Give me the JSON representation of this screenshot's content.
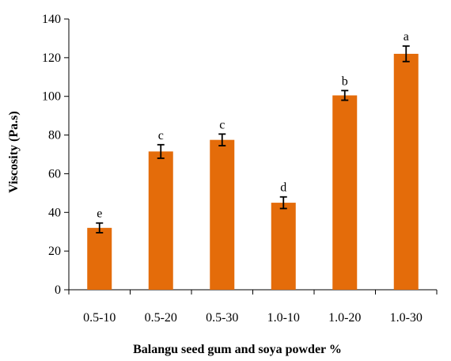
{
  "chart_data": {
    "type": "bar",
    "xlabel": "Balangu seed gum and soya powder %",
    "ylabel": "Viscosity (Pa.s)",
    "categories": [
      "0.5-10",
      "0.5-20",
      "0.5-30",
      "1.0-10",
      "1.0-20",
      "1.0-30"
    ],
    "values": [
      32,
      71.5,
      77.5,
      45,
      100.5,
      122
    ],
    "errors": [
      2.5,
      3.5,
      3,
      3,
      2.5,
      4
    ],
    "letters": [
      "e",
      "c",
      "c",
      "d",
      "b",
      "a"
    ],
    "ylim": [
      0,
      140
    ],
    "yticks": [
      0,
      20,
      40,
      60,
      80,
      100,
      120,
      140
    ],
    "bar_color": "#e46c0a",
    "grid": false,
    "legend": "none"
  }
}
